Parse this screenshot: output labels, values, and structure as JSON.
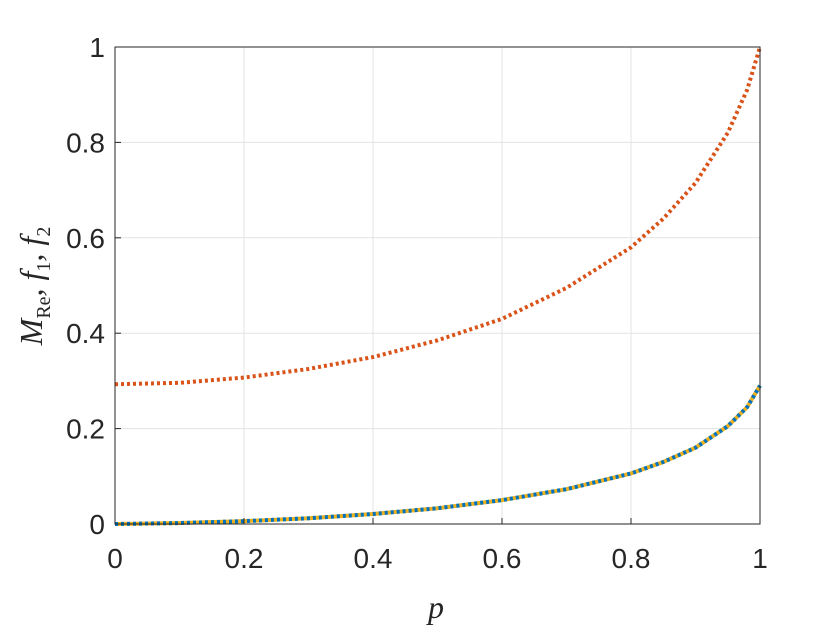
{
  "chart_data": {
    "type": "line",
    "xlabel": "p",
    "ylabel": [
      {
        "text": "M"
      },
      {
        "text": "Re",
        "sub": true
      },
      {
        "text": ", f"
      },
      {
        "text": "1",
        "sub": true
      },
      {
        "text": ", f"
      },
      {
        "text": "2",
        "sub": true
      }
    ],
    "x": [
      0,
      0.1,
      0.2,
      0.3,
      0.4,
      0.5,
      0.6,
      0.7,
      0.8,
      0.85,
      0.9,
      0.95,
      0.98,
      1
    ],
    "series": [
      {
        "color": "#D95319",
        "style": "dotted",
        "values": [
          0.293,
          0.296,
          0.307,
          0.325,
          0.35,
          0.385,
          0.43,
          0.495,
          0.58,
          0.64,
          0.715,
          0.82,
          0.91,
          1.0
        ]
      },
      {
        "color": "#EDB120",
        "style": "solid",
        "values": [
          0,
          0.002,
          0.006,
          0.012,
          0.021,
          0.033,
          0.05,
          0.073,
          0.106,
          0.13,
          0.16,
          0.205,
          0.245,
          0.29
        ]
      },
      {
        "color": "#0072BD",
        "style": "dotted",
        "values": [
          0,
          0.002,
          0.006,
          0.012,
          0.021,
          0.033,
          0.05,
          0.073,
          0.106,
          0.13,
          0.16,
          0.205,
          0.245,
          0.29
        ]
      }
    ],
    "xlim": [
      0,
      1
    ],
    "ylim": [
      0,
      1
    ],
    "xticks": [
      0,
      0.2,
      0.4,
      0.6,
      0.8,
      1
    ],
    "yticks": [
      0,
      0.2,
      0.4,
      0.6,
      0.8,
      1
    ],
    "grid": true
  }
}
